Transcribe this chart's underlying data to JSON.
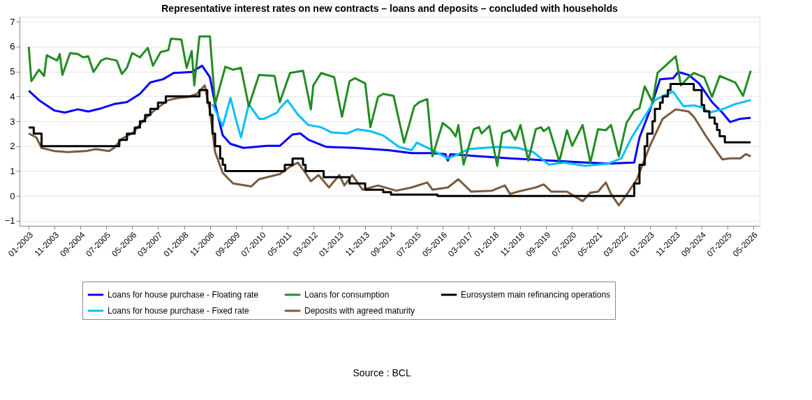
{
  "chart_data": {
    "type": "line",
    "title": "Representative interest rates on new contracts – loans and deposits – concluded with households",
    "annotations": [
      "Source : BCL"
    ],
    "xlim": [
      "2002-09-15",
      "2026-07-15"
    ],
    "ylim": [
      -1.2,
      7.2
    ],
    "yticks": [
      -1,
      0,
      1,
      2,
      3,
      4,
      5,
      6,
      7
    ],
    "xticks": [
      {
        "value": "2003-01",
        "label": "01-2003"
      },
      {
        "value": "2003-11",
        "label": "11-2003"
      },
      {
        "value": "2004-09",
        "label": "09-2004"
      },
      {
        "value": "2005-07",
        "label": "07-2005"
      },
      {
        "value": "2006-05",
        "label": "05-2006"
      },
      {
        "value": "2007-03",
        "label": "03-2007"
      },
      {
        "value": "2008-01",
        "label": "01-2008"
      },
      {
        "value": "2008-11",
        "label": "11-2008"
      },
      {
        "value": "2009-09",
        "label": "09-2009"
      },
      {
        "value": "2010-07",
        "label": "07-2010"
      },
      {
        "value": "2011-05",
        "label": "05-2011"
      },
      {
        "value": "2012-03",
        "label": "03-2012"
      },
      {
        "value": "2013-01",
        "label": "01-2013"
      },
      {
        "value": "2013-11",
        "label": "11-2013"
      },
      {
        "value": "2014-09",
        "label": "09-2014"
      },
      {
        "value": "2015-07",
        "label": "07-2015"
      },
      {
        "value": "2016-05",
        "label": "05-2016"
      },
      {
        "value": "2017-03",
        "label": "03-2017"
      },
      {
        "value": "2018-01",
        "label": "01-2018"
      },
      {
        "value": "2018-11",
        "label": "11-2018"
      },
      {
        "value": "2019-09",
        "label": "09-2019"
      },
      {
        "value": "2020-07",
        "label": "07-2020"
      },
      {
        "value": "2021-05",
        "label": "05-2021"
      },
      {
        "value": "2022-03",
        "label": "03-2022"
      },
      {
        "value": "2023-01",
        "label": "01-2023"
      },
      {
        "value": "2023-11",
        "label": "11-2023"
      },
      {
        "value": "2024-09",
        "label": "09-2024"
      },
      {
        "value": "2025-07",
        "label": "07-2025"
      },
      {
        "value": "2026-05",
        "label": "05-2026"
      }
    ],
    "grid": "y",
    "legend": "bottom",
    "series": [
      {
        "name": "Loans for house purchase - Floating rate",
        "color": "#0000ff",
        "x": [
          "2003-01",
          "2003-05",
          "2003-11",
          "2004-03",
          "2004-08",
          "2004-12",
          "2005-05",
          "2005-10",
          "2006-03",
          "2006-08",
          "2006-12",
          "2007-05",
          "2007-09",
          "2008-04",
          "2008-08",
          "2008-11",
          "2009-01",
          "2009-04",
          "2009-07",
          "2009-12",
          "2010-09",
          "2011-02",
          "2011-07",
          "2011-10",
          "2012-01",
          "2012-08",
          "2013-07",
          "2014-08",
          "2015-05",
          "2016-01",
          "2016-06",
          "2016-07",
          "2016-08",
          "2017-07",
          "2018-07",
          "2019-11",
          "2020-12",
          "2021-09",
          "2022-07",
          "2022-09",
          "2023-01",
          "2023-05",
          "2023-10",
          "2023-12",
          "2024-04",
          "2024-08",
          "2025-01",
          "2025-05",
          "2025-08",
          "2025-12",
          "2026-04"
        ],
        "values": [
          4.23,
          3.85,
          3.43,
          3.35,
          3.48,
          3.39,
          3.52,
          3.69,
          3.77,
          4.1,
          4.56,
          4.69,
          4.94,
          4.98,
          5.23,
          4.77,
          3.69,
          2.43,
          2.09,
          1.93,
          2.01,
          2.01,
          2.47,
          2.51,
          2.26,
          1.97,
          1.93,
          1.84,
          1.72,
          1.72,
          1.68,
          1.42,
          1.68,
          1.59,
          1.51,
          1.42,
          1.34,
          1.3,
          1.34,
          2.35,
          3.43,
          4.69,
          4.73,
          4.98,
          4.86,
          4.52,
          3.77,
          3.35,
          2.97,
          3.1,
          3.14
        ]
      },
      {
        "name": "Loans for house purchase - Fixed rate",
        "color": "#00bfff",
        "x": [
          "2008-12",
          "2009-04",
          "2009-07",
          "2009-09",
          "2009-11",
          "2010-02",
          "2010-06",
          "2010-08",
          "2011-01",
          "2011-02",
          "2011-05",
          "2011-09",
          "2012-01",
          "2012-06",
          "2012-10",
          "2013-04",
          "2013-08",
          "2014-01",
          "2014-06",
          "2014-12",
          "2015-05",
          "2015-07",
          "2016-01",
          "2016-07",
          "2016-10",
          "2017-03",
          "2018-02",
          "2018-10",
          "2019-04",
          "2019-10",
          "2020-04",
          "2020-12",
          "2021-09",
          "2022-02",
          "2022-06",
          "2022-10",
          "2023-03",
          "2023-07",
          "2023-10",
          "2024-02",
          "2024-06",
          "2024-09",
          "2024-12",
          "2025-05",
          "2025-10",
          "2026-04"
        ],
        "values": [
          3.69,
          2.81,
          3.94,
          3.1,
          2.35,
          3.69,
          3.1,
          3.1,
          3.35,
          3.52,
          3.85,
          3.27,
          2.85,
          2.76,
          2.55,
          2.51,
          2.68,
          2.6,
          2.43,
          1.97,
          1.84,
          2.14,
          1.84,
          1.51,
          1.63,
          1.88,
          1.97,
          1.93,
          1.76,
          1.26,
          1.34,
          1.21,
          1.3,
          1.51,
          2.35,
          3.02,
          3.85,
          4.06,
          4.19,
          3.6,
          3.64,
          3.56,
          3.35,
          3.48,
          3.69,
          3.85
        ]
      },
      {
        "name": "Loans for consumption",
        "color": "#228b22",
        "x": [
          "2003-01",
          "2003-02",
          "2003-05",
          "2003-07",
          "2003-08",
          "2003-12",
          "2004-01",
          "2004-02",
          "2004-05",
          "2004-08",
          "2004-10",
          "2004-12",
          "2005-02",
          "2005-05",
          "2005-07",
          "2005-11",
          "2006-01",
          "2006-03",
          "2006-05",
          "2006-08",
          "2006-11",
          "2007-01",
          "2007-04",
          "2007-07",
          "2007-08",
          "2007-12",
          "2008-02",
          "2008-04",
          "2008-05",
          "2008-07",
          "2008-11",
          "2009-01",
          "2009-05",
          "2009-08",
          "2009-11",
          "2010-02",
          "2010-06",
          "2010-12",
          "2011-02",
          "2011-06",
          "2011-11",
          "2012-02",
          "2012-03",
          "2012-06",
          "2012-11",
          "2013-02",
          "2013-05",
          "2013-07",
          "2013-11",
          "2014-01",
          "2014-04",
          "2014-06",
          "2014-10",
          "2015-02",
          "2015-04",
          "2015-06",
          "2015-08",
          "2015-11",
          "2016-01",
          "2016-05",
          "2016-08",
          "2016-10",
          "2016-11",
          "2017-01",
          "2017-05",
          "2017-07",
          "2017-08",
          "2017-11",
          "2018-02",
          "2018-04",
          "2018-07",
          "2018-09",
          "2018-11",
          "2019-02",
          "2019-05",
          "2019-07",
          "2019-08",
          "2019-10",
          "2020-02",
          "2020-05",
          "2020-07",
          "2020-11",
          "2021-02",
          "2021-05",
          "2021-08",
          "2021-10",
          "2022-01",
          "2022-04",
          "2022-07",
          "2022-09",
          "2022-11",
          "2023-02",
          "2023-04",
          "2023-08",
          "2023-11",
          "2024-01",
          "2024-04",
          "2024-06",
          "2024-10",
          "2025-01",
          "2025-04",
          "2025-10",
          "2026-01",
          "2026-04"
        ],
        "values": [
          5.99,
          4.61,
          5.07,
          4.82,
          5.65,
          5.44,
          5.7,
          4.86,
          5.74,
          5.7,
          5.57,
          5.61,
          4.98,
          5.44,
          5.53,
          5.44,
          4.9,
          5.15,
          5.74,
          5.57,
          5.95,
          5.23,
          5.78,
          5.86,
          6.32,
          6.28,
          5.15,
          5.82,
          4.44,
          6.41,
          6.41,
          3.69,
          5.19,
          5.07,
          5.15,
          3.6,
          4.86,
          4.82,
          3.77,
          4.94,
          5.03,
          3.48,
          4.44,
          4.94,
          4.77,
          3.18,
          4.61,
          4.73,
          4.52,
          2.76,
          3.98,
          4.1,
          4.02,
          2.14,
          2.85,
          3.6,
          3.77,
          3.89,
          1.59,
          2.93,
          2.68,
          2.39,
          2.85,
          1.26,
          2.68,
          2.76,
          2.51,
          2.81,
          1.21,
          2.51,
          2.64,
          2.26,
          2.85,
          1.42,
          2.68,
          2.76,
          2.6,
          2.76,
          1.38,
          2.64,
          2.01,
          2.85,
          1.34,
          2.68,
          2.64,
          2.85,
          1.59,
          2.93,
          3.43,
          3.52,
          4.4,
          3.77,
          4.94,
          5.32,
          5.61,
          4.44,
          4.77,
          4.94,
          4.77,
          3.98,
          4.82,
          4.56,
          4.02,
          5.03
        ]
      },
      {
        "name": "Deposits with agreed maturity",
        "color": "#7b5a3c",
        "x": [
          "2003-01",
          "2003-04",
          "2003-06",
          "2003-11",
          "2004-04",
          "2004-11",
          "2005-03",
          "2005-08",
          "2005-10",
          "2006-01",
          "2006-05",
          "2006-10",
          "2007-02",
          "2007-07",
          "2007-11",
          "2008-03",
          "2008-06",
          "2008-09",
          "2008-11",
          "2009-01",
          "2009-04",
          "2009-08",
          "2010-03",
          "2010-06",
          "2011-02",
          "2011-06",
          "2011-09",
          "2011-12",
          "2012-02",
          "2012-05",
          "2012-09",
          "2013-01",
          "2013-03",
          "2013-06",
          "2013-10",
          "2014-04",
          "2014-11",
          "2015-05",
          "2015-11",
          "2016-01",
          "2016-07",
          "2016-11",
          "2017-04",
          "2017-12",
          "2018-05",
          "2018-07",
          "2018-10",
          "2019-05",
          "2019-08",
          "2019-11",
          "2020-05",
          "2020-11",
          "2021-02",
          "2021-05",
          "2021-08",
          "2021-10",
          "2022-01",
          "2022-04",
          "2022-08",
          "2023-01",
          "2023-06",
          "2023-11",
          "2024-04",
          "2024-06",
          "2024-11",
          "2025-05",
          "2025-08",
          "2025-12",
          "2026-02",
          "2026-04"
        ],
        "values": [
          2.51,
          2.35,
          1.93,
          1.8,
          1.76,
          1.8,
          1.88,
          1.8,
          1.93,
          2.3,
          2.51,
          3.1,
          3.48,
          3.85,
          3.94,
          3.98,
          4.1,
          4.44,
          3.43,
          1.76,
          0.92,
          0.5,
          0.38,
          0.67,
          0.88,
          1.17,
          1.34,
          0.92,
          0.59,
          0.84,
          0.34,
          0.84,
          0.42,
          0.84,
          0.25,
          0.42,
          0.21,
          0.34,
          0.54,
          0.25,
          0.34,
          0.67,
          0.17,
          0.21,
          0.42,
          0.08,
          0.17,
          0.34,
          0.46,
          0.17,
          0.17,
          -0.21,
          0.13,
          0.17,
          0.54,
          0.08,
          -0.38,
          0.04,
          0.67,
          2.01,
          3.1,
          3.48,
          3.39,
          3.18,
          2.35,
          1.47,
          1.51,
          1.51,
          1.68,
          1.59
        ]
      },
      {
        "name": "Eurosystem main refinancing operations",
        "color": "#000000",
        "type": "step",
        "x": [
          "2003-01",
          "2003-03",
          "2003-06",
          "2005-12",
          "2006-03",
          "2006-06",
          "2006-08",
          "2006-10",
          "2006-12",
          "2007-03",
          "2007-06",
          "2008-07",
          "2008-10",
          "2008-11",
          "2008-12",
          "2009-01",
          "2009-03",
          "2009-04",
          "2009-05",
          "2011-04",
          "2011-07",
          "2011-11",
          "2011-12",
          "2012-07",
          "2013-05",
          "2013-11",
          "2014-06",
          "2014-09",
          "2016-03",
          "2022-07",
          "2022-09",
          "2022-11",
          "2022-12",
          "2023-02",
          "2023-03",
          "2023-05",
          "2023-06",
          "2023-08",
          "2023-09",
          "2024-06",
          "2024-09",
          "2024-10",
          "2024-12",
          "2025-02",
          "2025-03",
          "2025-04",
          "2025-06",
          "2026-04"
        ],
        "values": [
          2.75,
          2.5,
          2.0,
          2.25,
          2.5,
          2.75,
          3.0,
          3.25,
          3.5,
          3.75,
          4.0,
          4.25,
          3.75,
          3.25,
          2.5,
          2.0,
          1.5,
          1.25,
          1.0,
          1.25,
          1.5,
          1.25,
          1.0,
          0.75,
          0.5,
          0.25,
          0.15,
          0.05,
          0.0,
          0.5,
          1.25,
          2.0,
          2.5,
          3.0,
          3.5,
          3.75,
          4.0,
          4.25,
          4.5,
          4.25,
          3.65,
          3.4,
          3.15,
          2.9,
          2.65,
          2.4,
          2.15,
          2.15
        ]
      }
    ]
  }
}
